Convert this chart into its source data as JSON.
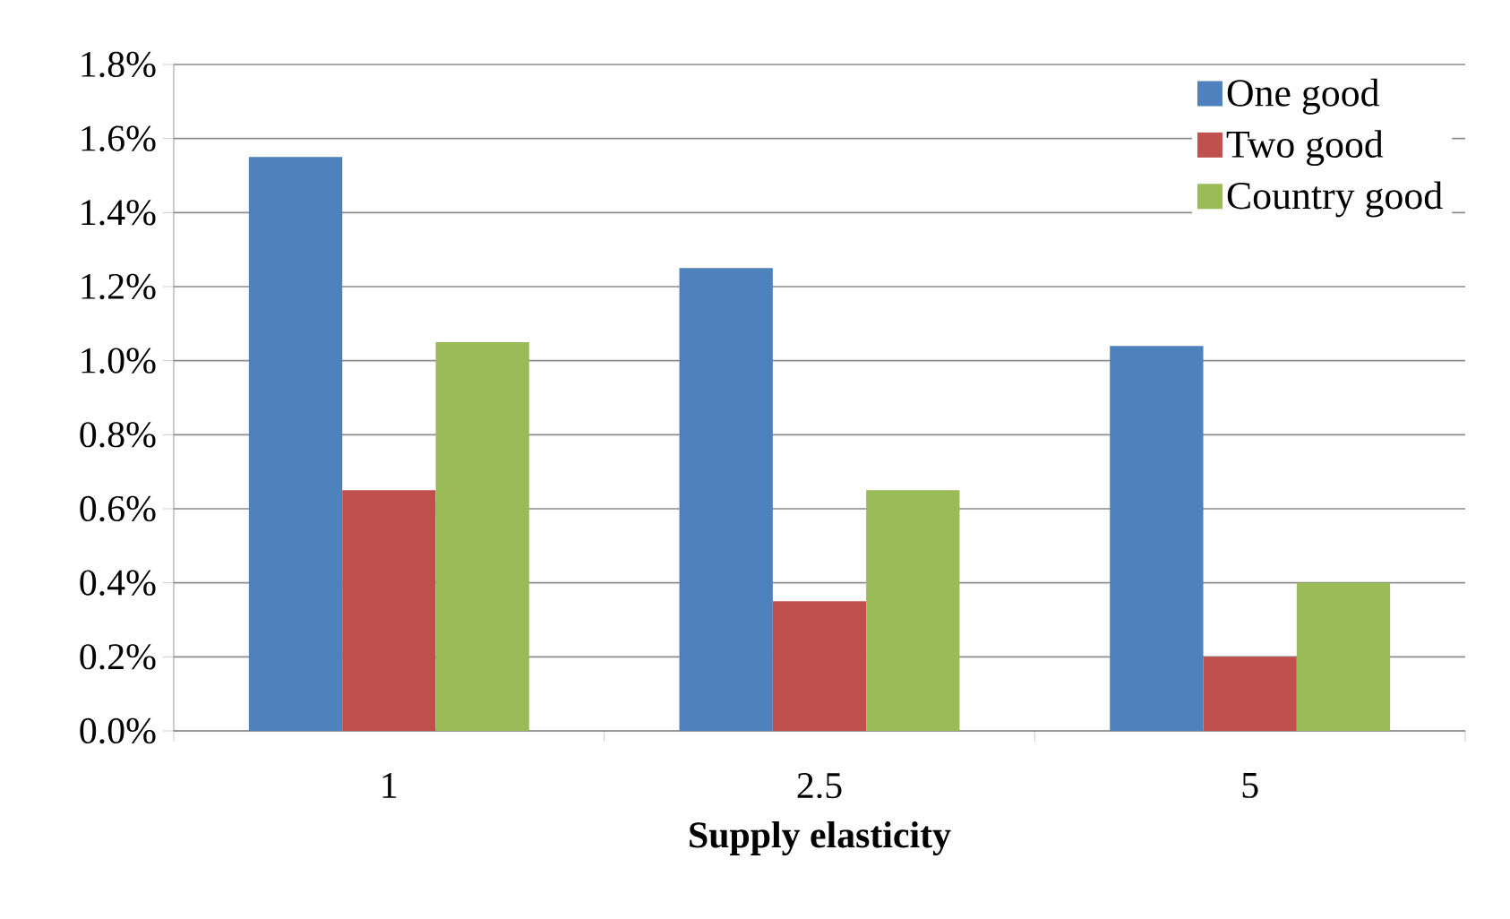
{
  "chart_data": {
    "type": "bar",
    "xlabel": "Supply elasticity",
    "categories": [
      "1",
      "2.5",
      "5"
    ],
    "series": [
      {
        "name": "One good",
        "color": "#4f81bd",
        "values": [
          1.55,
          1.25,
          1.04
        ]
      },
      {
        "name": "Two good",
        "color": "#c0504d",
        "values": [
          0.65,
          0.35,
          0.2
        ]
      },
      {
        "name": "Country good",
        "color": "#9bbb59",
        "values": [
          1.05,
          0.65,
          0.4
        ]
      }
    ],
    "ylim": [
      0,
      1.8
    ],
    "yticks": [
      {
        "value": 0,
        "label": "0.0%"
      },
      {
        "value": 0.2,
        "label": "0.2%"
      },
      {
        "value": 0.4,
        "label": "0.4%"
      },
      {
        "value": 0.6,
        "label": "0.6%"
      },
      {
        "value": 0.8,
        "label": "0.8%"
      },
      {
        "value": 1.0,
        "label": "1.0%"
      },
      {
        "value": 1.2,
        "label": "1.2%"
      },
      {
        "value": 1.4,
        "label": "1.4%"
      },
      {
        "value": 1.6,
        "label": "1.6%"
      },
      {
        "value": 1.8,
        "label": "1.8%"
      }
    ],
    "grid": "y",
    "legend": "top right"
  }
}
